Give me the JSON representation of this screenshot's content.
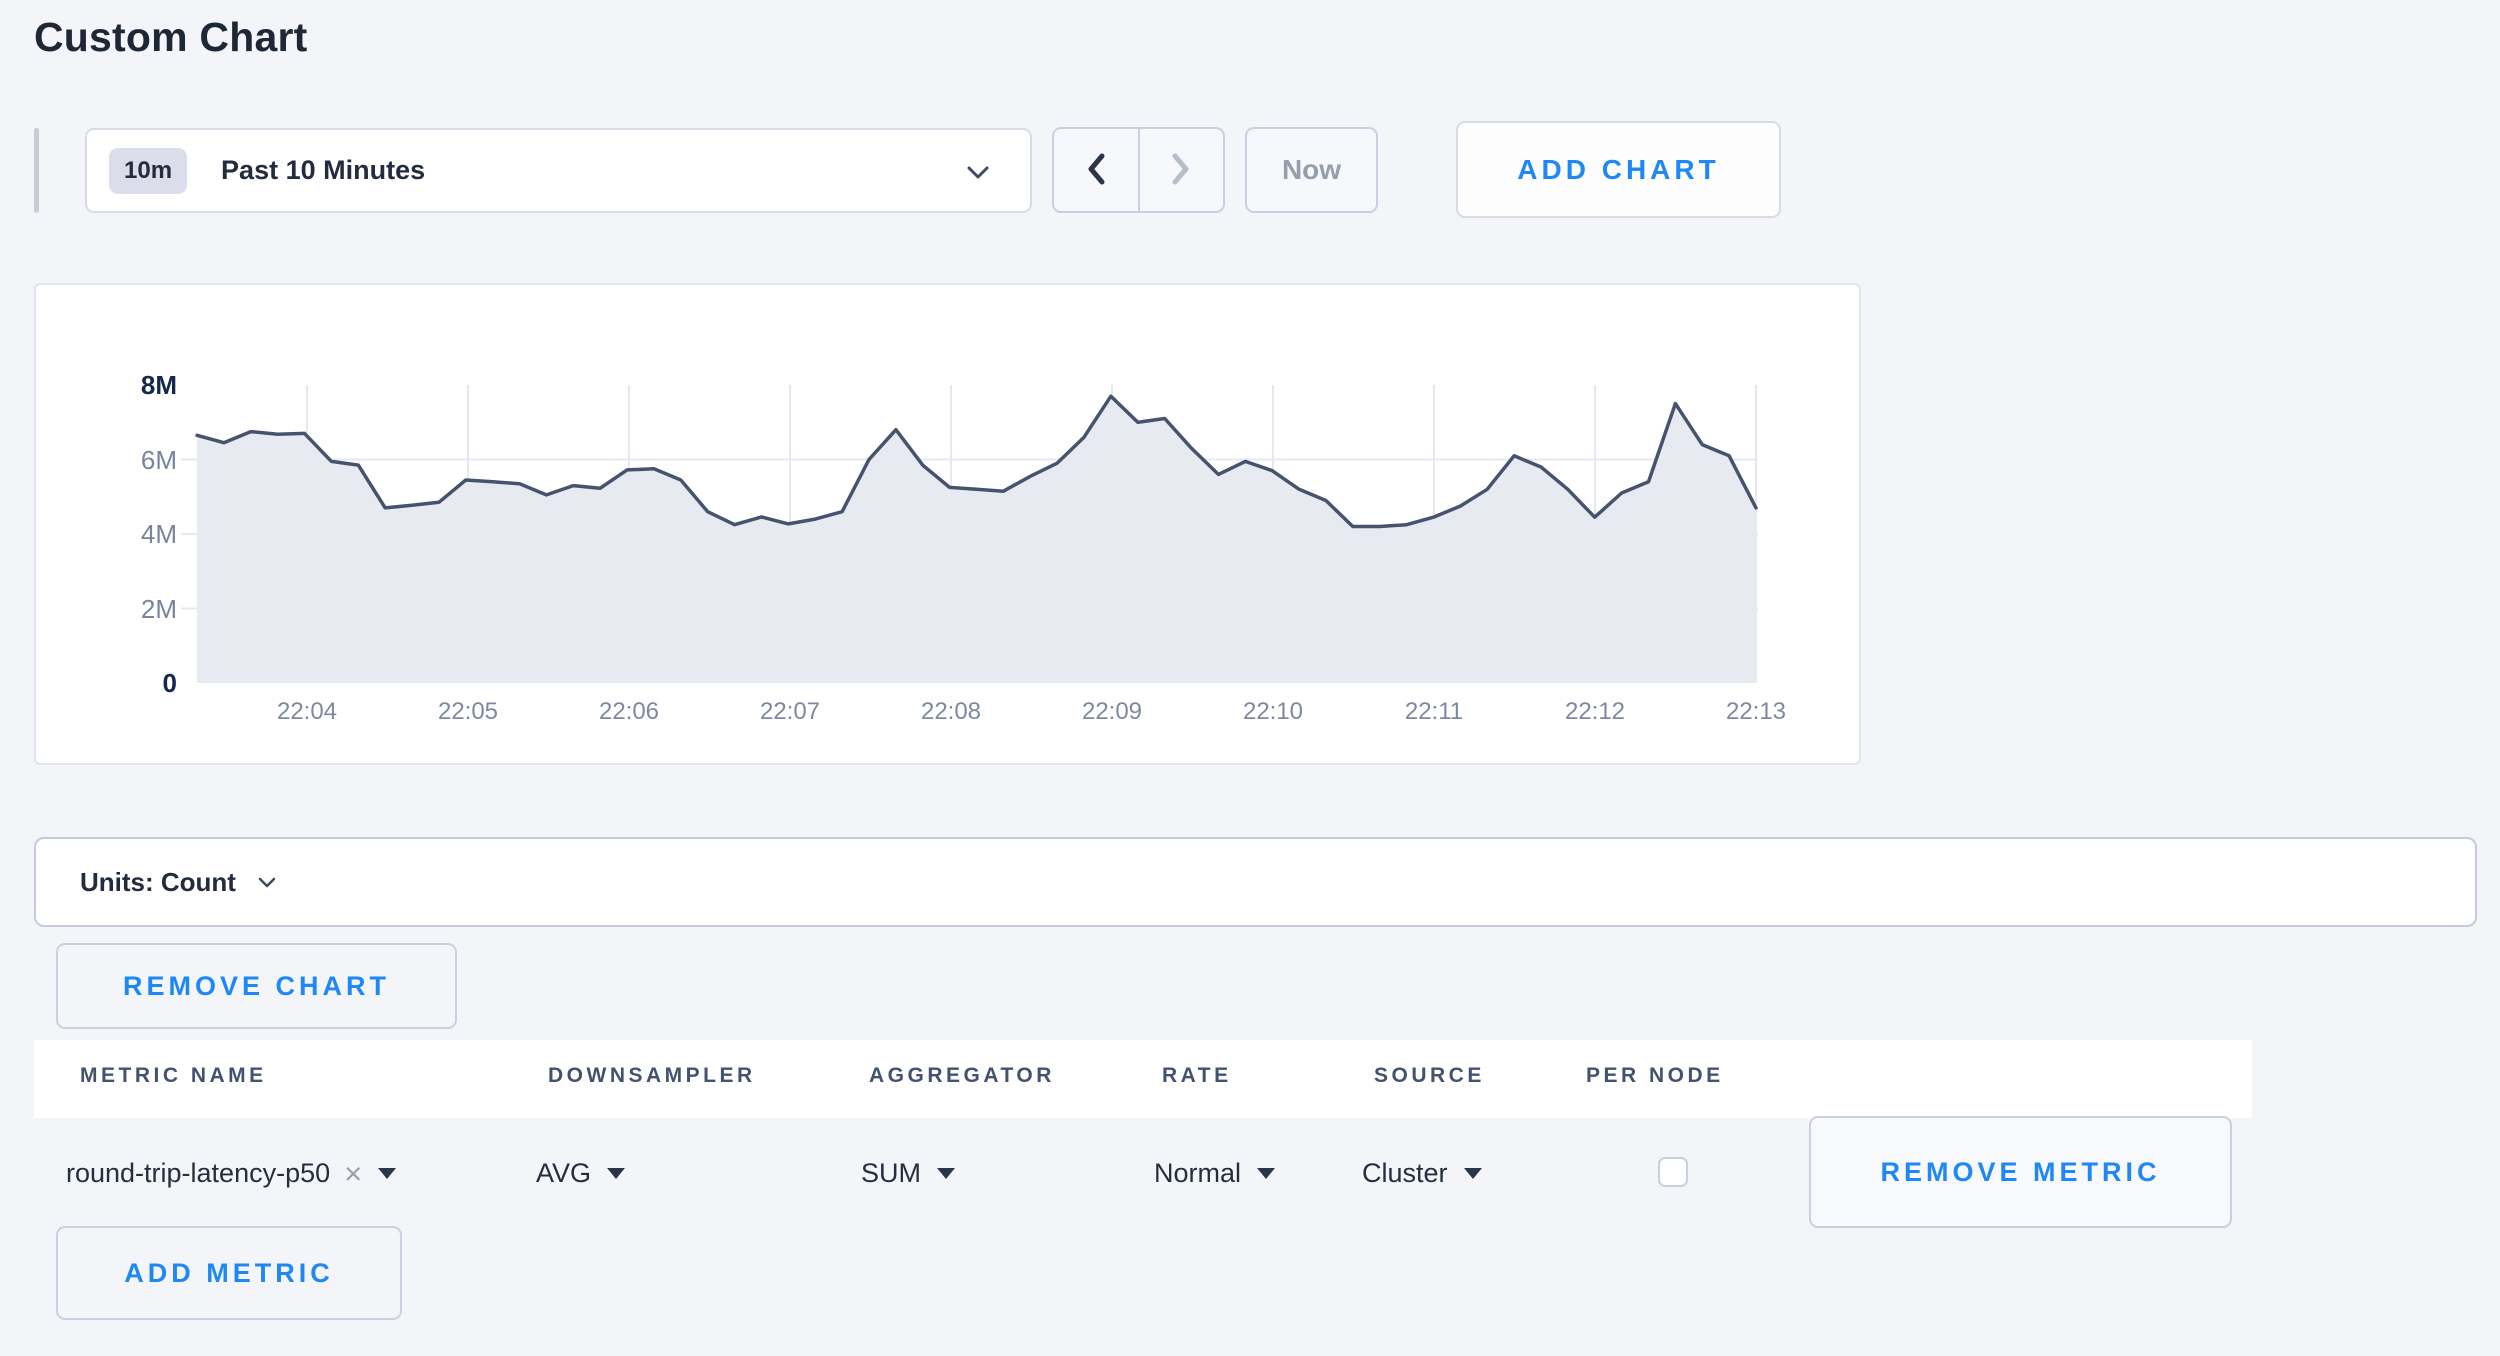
{
  "page": {
    "title": "Custom Chart"
  },
  "toolbar": {
    "timescale": {
      "badge": "10m",
      "label": "Past 10 Minutes"
    },
    "now_label": "Now",
    "add_chart_label": "ADD CHART"
  },
  "icons": {
    "dropdown_caret": "chevron-down",
    "prev": "chevron-left",
    "next": "chevron-right",
    "select_caret": "triangle-down",
    "clear": "×"
  },
  "chart_data": {
    "type": "area",
    "title": "",
    "xlabel": "",
    "ylabel": "",
    "unit": "Count",
    "ylim": [
      0,
      8000000
    ],
    "ytick_labels": [
      "0",
      "2M",
      "4M",
      "6M",
      "8M"
    ],
    "xtick_labels": [
      "22:04",
      "22:05",
      "22:06",
      "22:07",
      "22:08",
      "22:09",
      "22:10",
      "22:11",
      "22:12",
      "22:13"
    ],
    "hgrid_values": [
      2000000,
      4000000,
      6000000
    ],
    "grid": true,
    "legend": false,
    "line_color": "#46536d",
    "fill_color": "#e8eaf1",
    "grid_color": "#e4e8f0",
    "series": [
      {
        "name": "round-trip-latency-p50",
        "x_start": "22:03:20",
        "x_step_seconds": 10,
        "values": [
          6650000,
          6450000,
          6750000,
          6680000,
          6700000,
          5950000,
          5850000,
          4700000,
          4770000,
          4850000,
          5450000,
          5400000,
          5350000,
          5050000,
          5300000,
          5230000,
          5720000,
          5750000,
          5450000,
          4600000,
          4250000,
          4460000,
          4270000,
          4400000,
          4600000,
          6000000,
          6800000,
          5850000,
          5250000,
          5200000,
          5150000,
          5550000,
          5900000,
          6600000,
          7700000,
          7000000,
          7100000,
          6300000,
          5600000,
          5950000,
          5700000,
          5200000,
          4900000,
          4200000,
          4200000,
          4250000,
          4450000,
          4750000,
          5200000,
          6100000,
          5800000,
          5200000,
          4450000,
          5100000,
          5400000,
          7500000,
          6400000,
          6100000,
          4700000
        ]
      }
    ]
  },
  "units_bar": {
    "label": "Units: Count"
  },
  "chart_actions": {
    "remove_chart_label": "REMOVE CHART"
  },
  "metrics_table": {
    "columns": [
      "METRIC NAME",
      "DOWNSAMPLER",
      "AGGREGATOR",
      "RATE",
      "SOURCE",
      "PER NODE"
    ],
    "rows": [
      {
        "metric_name": "round-trip-latency-p50",
        "downsampler": "AVG",
        "aggregator": "SUM",
        "rate": "Normal",
        "source": "Cluster",
        "per_node_checked": false,
        "remove_label": "REMOVE METRIC"
      }
    ],
    "add_metric_label": "ADD METRIC"
  }
}
